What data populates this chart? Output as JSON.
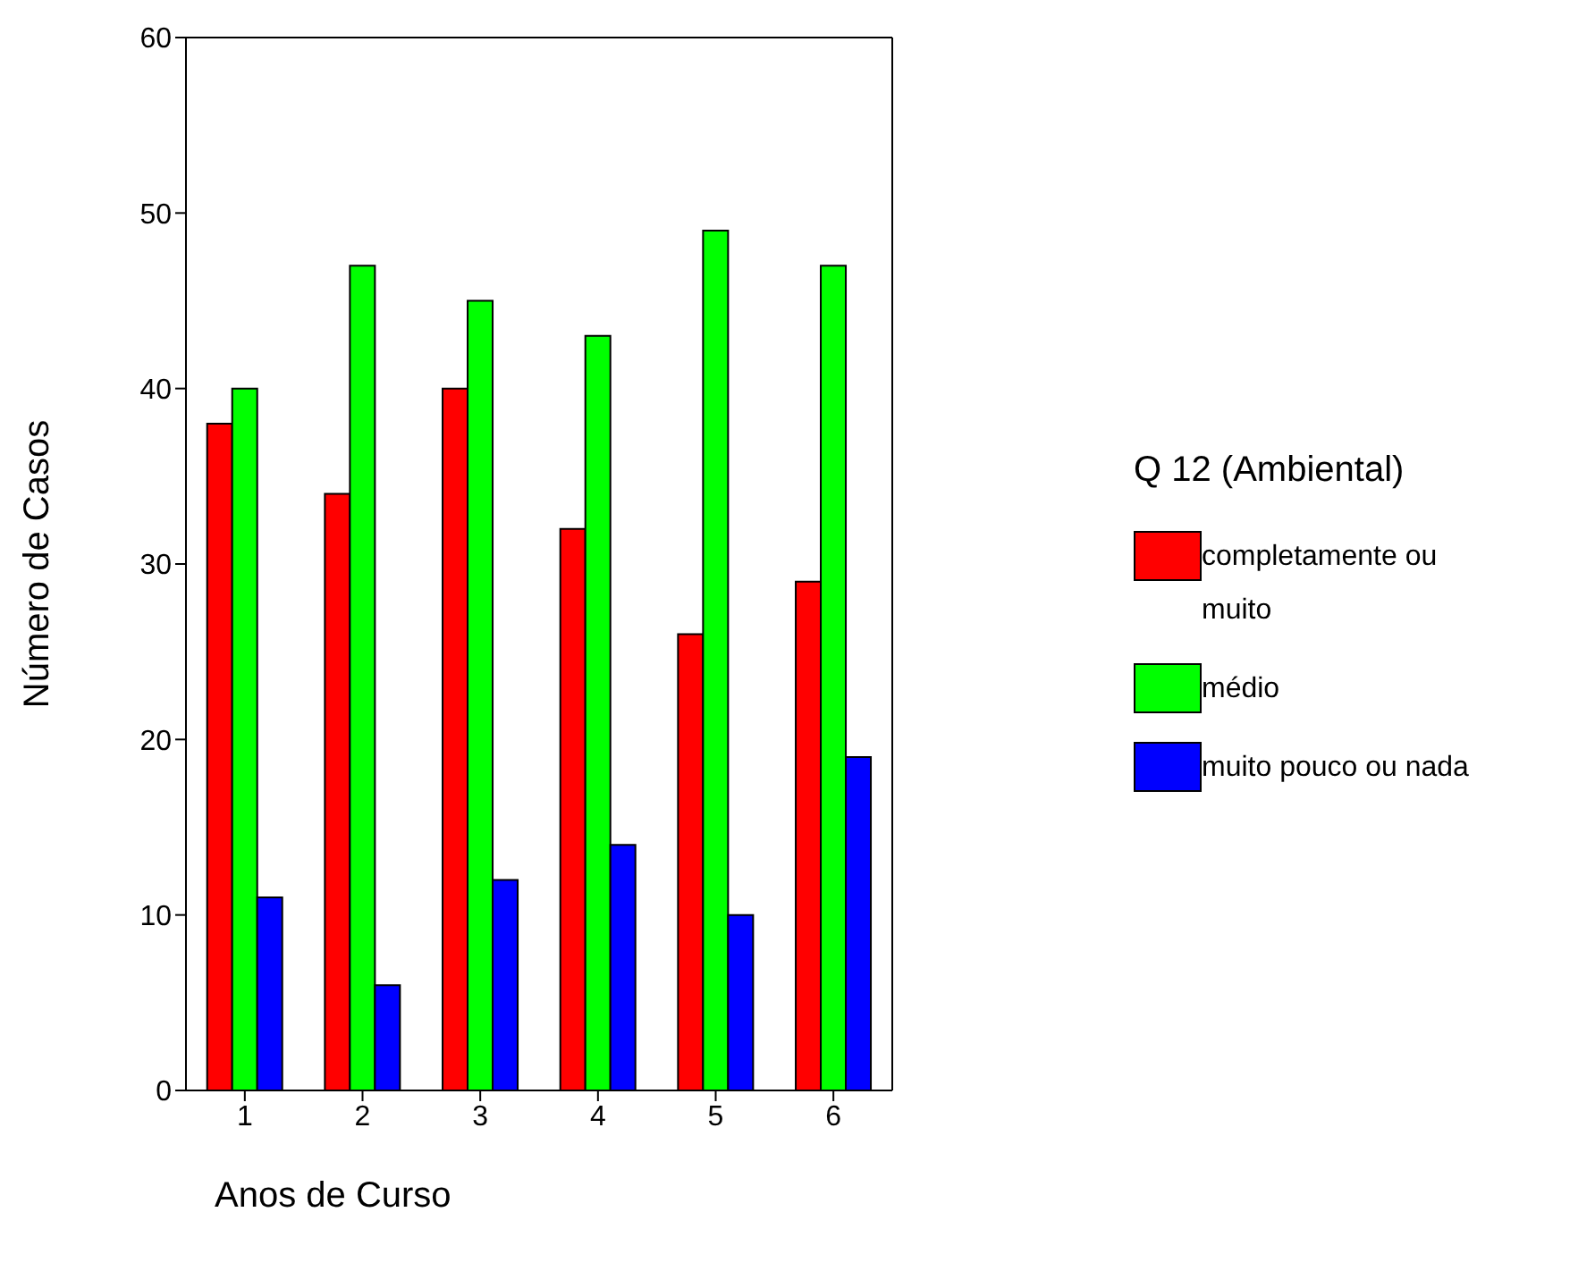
{
  "chart_data": {
    "type": "bar",
    "xlabel": "Anos de Curso",
    "ylabel": "Número de Casos",
    "legend_title": "Q 12 (Ambiental)",
    "legend": "right",
    "grid": false,
    "categories": [
      "1",
      "2",
      "3",
      "4",
      "5",
      "6"
    ],
    "series": [
      {
        "name": "completamente ou muito",
        "color": "#ff0000",
        "values": [
          38,
          34,
          40,
          32,
          26,
          29
        ]
      },
      {
        "name": "médio",
        "color": "#00ff00",
        "values": [
          40,
          47,
          45,
          43,
          49,
          47
        ]
      },
      {
        "name": "muito pouco ou nada",
        "color": "#0000ff",
        "values": [
          11,
          6,
          12,
          14,
          10,
          19
        ]
      }
    ],
    "ylim": [
      0,
      60
    ],
    "yticks": [
      0,
      10,
      20,
      30,
      40,
      50,
      60
    ]
  }
}
